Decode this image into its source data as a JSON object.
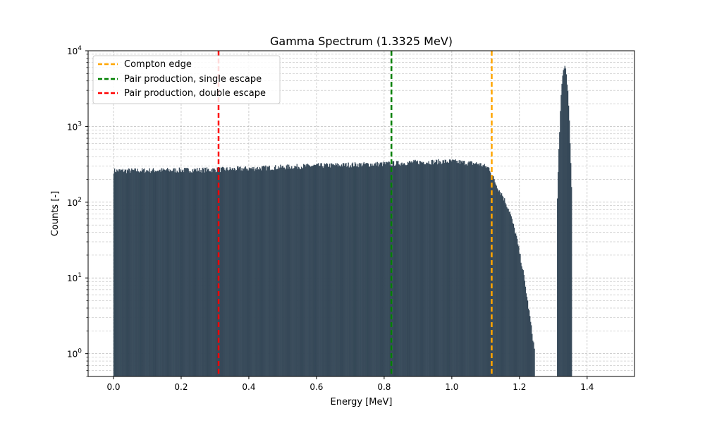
{
  "chart_data": {
    "type": "bar",
    "title": "Gamma Spectrum (1.3325 MeV)",
    "xlabel": "Energy [MeV]",
    "ylabel": "Counts [-]",
    "xlim": [
      -0.075,
      1.54
    ],
    "ylim": [
      0.5,
      10000
    ],
    "yscale": "log",
    "grid": true,
    "legend_position": "top-left",
    "x_ticks": [
      "0.0",
      "0.2",
      "0.4",
      "0.6",
      "0.8",
      "1.0",
      "1.2",
      "1.4"
    ],
    "x_tick_values": [
      0.0,
      0.2,
      0.4,
      0.6,
      0.8,
      1.0,
      1.2,
      1.4
    ],
    "y_ticks": [
      {
        "base": "10",
        "exp": "0",
        "value": 1
      },
      {
        "base": "10",
        "exp": "1",
        "value": 10
      },
      {
        "base": "10",
        "exp": "2",
        "value": 100
      },
      {
        "base": "10",
        "exp": "3",
        "value": 1000
      },
      {
        "base": "10",
        "exp": "4",
        "value": 10000
      }
    ],
    "histogram": {
      "color": "#1f3344",
      "edge_color": "#5a6a78",
      "profile": [
        {
          "energy": 0.0,
          "counts": 260
        },
        {
          "energy": 0.1,
          "counts": 262
        },
        {
          "energy": 0.2,
          "counts": 265
        },
        {
          "energy": 0.3,
          "counts": 268
        },
        {
          "energy": 0.4,
          "counts": 278
        },
        {
          "energy": 0.5,
          "counts": 290
        },
        {
          "energy": 0.6,
          "counts": 303
        },
        {
          "energy": 0.7,
          "counts": 312
        },
        {
          "energy": 0.8,
          "counts": 320
        },
        {
          "energy": 0.9,
          "counts": 338
        },
        {
          "energy": 1.0,
          "counts": 345
        },
        {
          "energy": 1.08,
          "counts": 320
        },
        {
          "energy": 1.11,
          "counts": 280
        },
        {
          "energy": 1.13,
          "counts": 170
        },
        {
          "energy": 1.15,
          "counts": 120
        },
        {
          "energy": 1.17,
          "counts": 75
        },
        {
          "energy": 1.19,
          "counts": 35
        },
        {
          "energy": 1.21,
          "counts": 12
        },
        {
          "energy": 1.23,
          "counts": 3
        },
        {
          "energy": 1.245,
          "counts": 1
        }
      ],
      "photopeak": {
        "center": 1.3325,
        "peak_counts": 6200,
        "sigma": 0.0075,
        "range": [
          1.31,
          1.355
        ]
      }
    },
    "vlines": [
      {
        "label": "Compton edge",
        "x": 1.118,
        "color": "#ffa500"
      },
      {
        "label": "Pair production, single escape",
        "x": 0.8215,
        "color": "#008000"
      },
      {
        "label": "Pair production, double escape",
        "x": 0.3105,
        "color": "#ff0000"
      }
    ]
  }
}
